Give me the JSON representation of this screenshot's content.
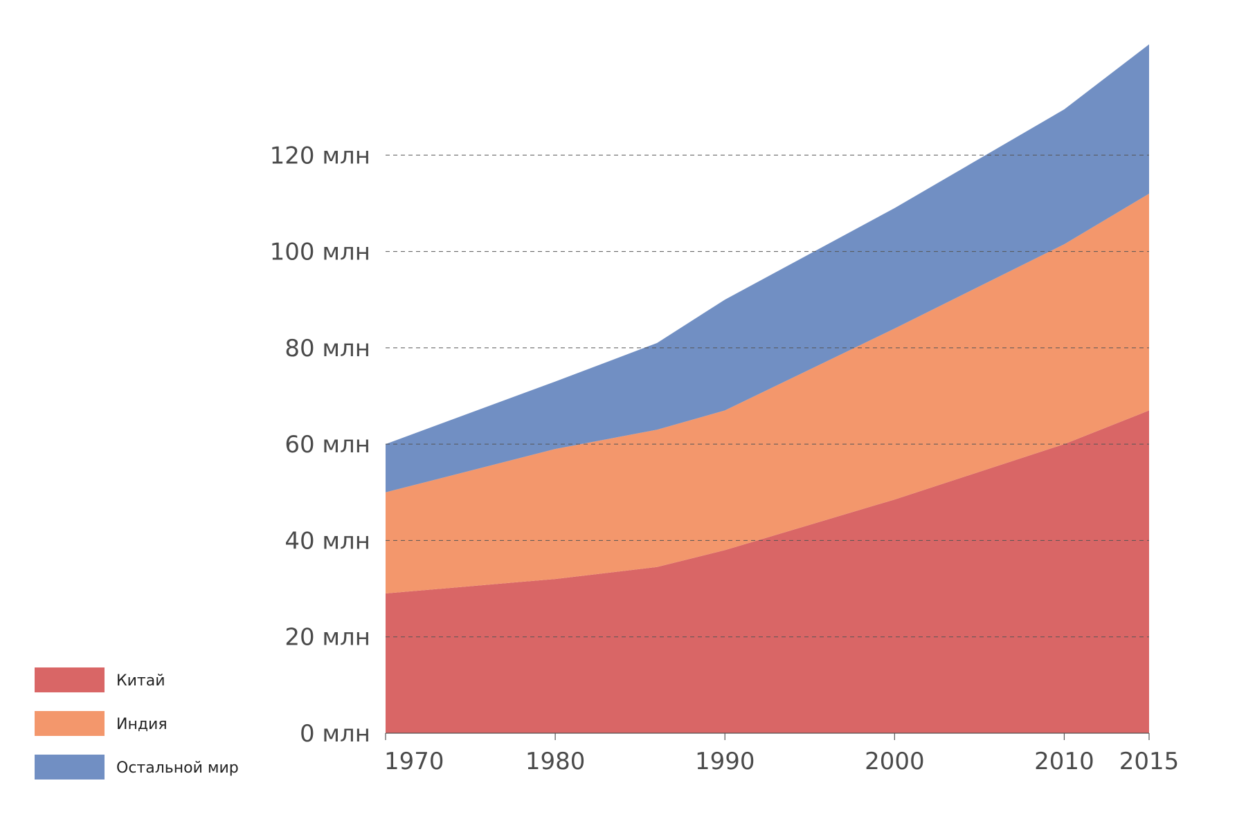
{
  "chart_data": {
    "type": "area",
    "stacked": true,
    "x": [
      1970,
      1980,
      1986,
      1990,
      2000,
      2010,
      2015
    ],
    "series": [
      {
        "name": "Китай",
        "color": "#d96666",
        "values": [
          29,
          32,
          34.5,
          38,
          48.5,
          60,
          67
        ]
      },
      {
        "name": "Индия",
        "color": "#f3976c",
        "values": [
          21,
          27,
          28.5,
          29,
          35.5,
          41.5,
          45
        ]
      },
      {
        "name": "Остальной мир",
        "color": "#718fc3",
        "values": [
          10,
          14,
          18,
          23,
          25,
          28,
          31
        ]
      }
    ],
    "x_ticks": [
      1970,
      1980,
      1990,
      2000,
      2010,
      2015
    ],
    "x_tick_labels": [
      "1970",
      "1980",
      "1990",
      "2000",
      "2010",
      "2015"
    ],
    "y_ticks": [
      0,
      20,
      40,
      60,
      80,
      100,
      120
    ],
    "y_tick_labels": [
      "0 млн",
      "20 млн",
      "40 млн",
      "60 млн",
      "80 млн",
      "100 млн",
      "120 млн"
    ],
    "xlim": [
      1970,
      2015
    ],
    "ylim": [
      0,
      140
    ],
    "grid": "horizontal-dashed",
    "legend": {
      "position": "bottom-left",
      "entries": [
        "Китай",
        "Индия",
        "Остальной мир"
      ]
    },
    "title": "",
    "xlabel": "",
    "ylabel": ""
  }
}
